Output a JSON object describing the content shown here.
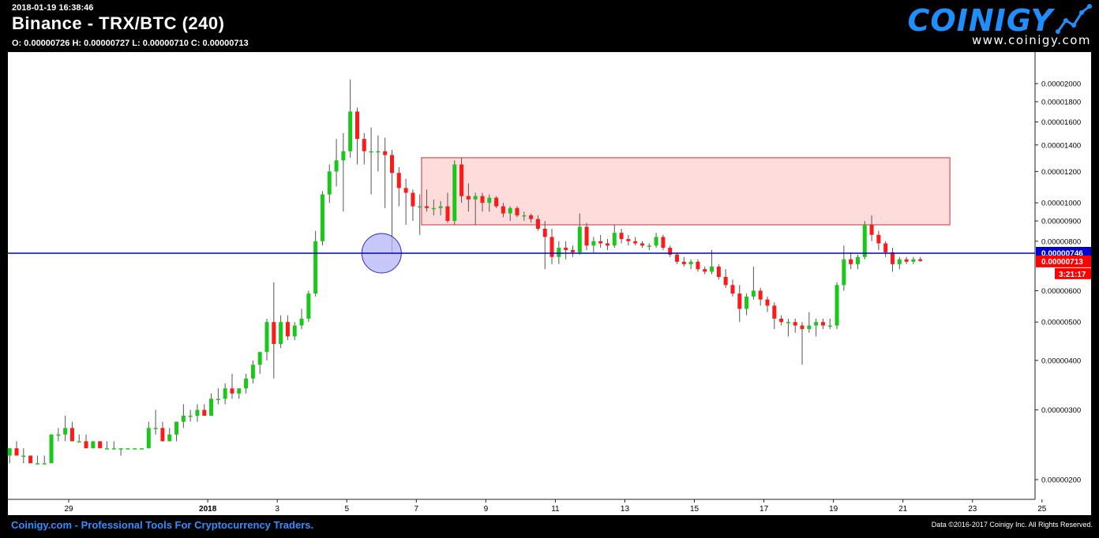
{
  "header": {
    "timestamp": "2018-01-19 16:38:46",
    "title": "Binance - TRX/BTC (240)",
    "ohlc": "O: 0.00000726 H: 0.00000727 L: 0.00000710 C: 0.00000713"
  },
  "logo": {
    "word": "COINIGY",
    "url": "www.coinigy.com"
  },
  "footer": {
    "left": "Coinigy.com - Professional Tools For Cryptocurrency Traders.",
    "right": "Data ©2016-2017 Coinigy Inc. All Rights Reserved."
  },
  "colors": {
    "up": "#19c819",
    "down": "#ff1a1a",
    "background": "#ffffff",
    "hline": "#0000cc",
    "zone_fill": "#ffdcdc",
    "zone_stroke": "#cc3333",
    "circle_fill": "#b4b4f5",
    "current_price_bg": "#ff0000",
    "hline_label_bg": "#0000cc"
  },
  "chart_data": {
    "type": "candlestick",
    "y_scale": "log",
    "y_tick_labels": [
      "0.00000200",
      "0.00000300",
      "0.00000400",
      "0.00000500",
      "0.00000600",
      "0.00000800",
      "0.00000900",
      "0.00001000",
      "0.00001200",
      "0.00001400",
      "0.00001600",
      "0.00001800",
      "0.00002000"
    ],
    "x_tick_labels": [
      "29",
      "2018",
      "3",
      "5",
      "7",
      "9",
      "11",
      "13",
      "15",
      "17",
      "19",
      "21",
      "23",
      "25"
    ],
    "x_tick_days": [
      -3,
      1,
      3,
      5,
      7,
      9,
      11,
      13,
      15,
      17,
      19,
      21,
      23,
      25
    ],
    "x_range_days": [
      -4.75,
      24.8
    ],
    "horizontal_line": {
      "value": 7.46e-06,
      "label": "0.00000746"
    },
    "current_price": {
      "value": 7.13e-06,
      "label": "0.00000713",
      "countdown": "3:21:17"
    },
    "zone": {
      "x_start_day": 7.15,
      "x_end_day": 22.35,
      "top": 1.3e-05,
      "bottom": 8.8e-06
    },
    "circle": {
      "x_day": 6.0,
      "value": 7.46e-06
    },
    "candles": [
      {
        "d": -4.7,
        "o": 2.3e-06,
        "h": 2.4e-06,
        "l": 2.2e-06,
        "c": 2.4e-06
      },
      {
        "d": -4.5,
        "o": 2.4e-06,
        "h": 2.5e-06,
        "l": 2.3e-06,
        "c": 2.3e-06
      },
      {
        "d": -4.3,
        "o": 2.3e-06,
        "h": 2.4e-06,
        "l": 2.2e-06,
        "c": 2.3e-06
      },
      {
        "d": -4.1,
        "o": 2.3e-06,
        "h": 2.3e-06,
        "l": 2.2e-06,
        "c": 2.2e-06
      },
      {
        "d": -3.9,
        "o": 2.2e-06,
        "h": 2.3e-06,
        "l": 2.2e-06,
        "c": 2.2e-06
      },
      {
        "d": -3.7,
        "o": 2.2e-06,
        "h": 2.3e-06,
        "l": 2.2e-06,
        "c": 2.2e-06
      },
      {
        "d": -3.5,
        "o": 2.2e-06,
        "h": 2.6e-06,
        "l": 2.2e-06,
        "c": 2.6e-06
      },
      {
        "d": -3.3,
        "o": 2.6e-06,
        "h": 2.7e-06,
        "l": 2.5e-06,
        "c": 2.6e-06
      },
      {
        "d": -3.1,
        "o": 2.6e-06,
        "h": 2.9e-06,
        "l": 2.5e-06,
        "c": 2.7e-06
      },
      {
        "d": -2.9,
        "o": 2.7e-06,
        "h": 2.8e-06,
        "l": 2.5e-06,
        "c": 2.5e-06
      },
      {
        "d": -2.7,
        "o": 2.5e-06,
        "h": 2.6e-06,
        "l": 2.5e-06,
        "c": 2.5e-06
      },
      {
        "d": -2.5,
        "o": 2.5e-06,
        "h": 2.6e-06,
        "l": 2.4e-06,
        "c": 2.4e-06
      },
      {
        "d": -2.3,
        "o": 2.4e-06,
        "h": 2.5e-06,
        "l": 2.4e-06,
        "c": 2.5e-06
      },
      {
        "d": -2.1,
        "o": 2.5e-06,
        "h": 2.5e-06,
        "l": 2.4e-06,
        "c": 2.4e-06
      },
      {
        "d": -1.9,
        "o": 2.4e-06,
        "h": 2.5e-06,
        "l": 2.4e-06,
        "c": 2.4e-06
      },
      {
        "d": -1.7,
        "o": 2.4e-06,
        "h": 2.5e-06,
        "l": 2.4e-06,
        "c": 2.4e-06
      },
      {
        "d": -1.5,
        "o": 2.4e-06,
        "h": 2.4e-06,
        "l": 2.3e-06,
        "c": 2.4e-06
      },
      {
        "d": -1.3,
        "o": 2.4e-06,
        "h": 2.4e-06,
        "l": 2.4e-06,
        "c": 2.4e-06
      },
      {
        "d": -1.1,
        "o": 2.4e-06,
        "h": 2.4e-06,
        "l": 2.4e-06,
        "c": 2.4e-06
      },
      {
        "d": -0.9,
        "o": 2.4e-06,
        "h": 2.4e-06,
        "l": 2.4e-06,
        "c": 2.4e-06
      },
      {
        "d": -0.7,
        "o": 2.4e-06,
        "h": 2.8e-06,
        "l": 2.4e-06,
        "c": 2.7e-06
      },
      {
        "d": -0.5,
        "o": 2.7e-06,
        "h": 3e-06,
        "l": 2.6e-06,
        "c": 2.7e-06
      },
      {
        "d": -0.3,
        "o": 2.7e-06,
        "h": 2.8e-06,
        "l": 2.5e-06,
        "c": 2.5e-06
      },
      {
        "d": -0.1,
        "o": 2.5e-06,
        "h": 2.7e-06,
        "l": 2.5e-06,
        "c": 2.6e-06
      },
      {
        "d": 0.1,
        "o": 2.6e-06,
        "h": 2.8e-06,
        "l": 2.5e-06,
        "c": 2.8e-06
      },
      {
        "d": 0.3,
        "o": 2.8e-06,
        "h": 3.1e-06,
        "l": 2.7e-06,
        "c": 2.9e-06
      },
      {
        "d": 0.5,
        "o": 2.9e-06,
        "h": 3e-06,
        "l": 2.8e-06,
        "c": 2.9e-06
      },
      {
        "d": 0.7,
        "o": 2.9e-06,
        "h": 3.1e-06,
        "l": 2.8e-06,
        "c": 3e-06
      },
      {
        "d": 0.9,
        "o": 3e-06,
        "h": 3.1e-06,
        "l": 2.9e-06,
        "c": 2.9e-06
      },
      {
        "d": 1.1,
        "o": 2.9e-06,
        "h": 3.3e-06,
        "l": 2.9e-06,
        "c": 3.2e-06
      },
      {
        "d": 1.3,
        "o": 3.2e-06,
        "h": 3.4e-06,
        "l": 3.1e-06,
        "c": 3.2e-06
      },
      {
        "d": 1.5,
        "o": 3.2e-06,
        "h": 3.5e-06,
        "l": 3.1e-06,
        "c": 3.4e-06
      },
      {
        "d": 1.7,
        "o": 3.4e-06,
        "h": 3.7e-06,
        "l": 3.2e-06,
        "c": 3.3e-06
      },
      {
        "d": 1.9,
        "o": 3.3e-06,
        "h": 3.4e-06,
        "l": 3.2e-06,
        "c": 3.4e-06
      },
      {
        "d": 2.1,
        "o": 3.4e-06,
        "h": 3.7e-06,
        "l": 3.3e-06,
        "c": 3.6e-06
      },
      {
        "d": 2.3,
        "o": 3.6e-06,
        "h": 4e-06,
        "l": 3.5e-06,
        "c": 3.9e-06
      },
      {
        "d": 2.5,
        "o": 3.9e-06,
        "h": 4.2e-06,
        "l": 3.7e-06,
        "c": 4.2e-06
      },
      {
        "d": 2.7,
        "o": 4.2e-06,
        "h": 5.1e-06,
        "l": 4e-06,
        "c": 5e-06
      },
      {
        "d": 2.9,
        "o": 5e-06,
        "h": 6.3e-06,
        "l": 3.6e-06,
        "c": 4.4e-06
      },
      {
        "d": 3.1,
        "o": 4.4e-06,
        "h": 5.2e-06,
        "l": 4.3e-06,
        "c": 5e-06
      },
      {
        "d": 3.3,
        "o": 5e-06,
        "h": 5.2e-06,
        "l": 4.5e-06,
        "c": 4.6e-06
      },
      {
        "d": 3.5,
        "o": 4.6e-06,
        "h": 5e-06,
        "l": 4.5e-06,
        "c": 4.9e-06
      },
      {
        "d": 3.7,
        "o": 4.9e-06,
        "h": 5.4e-06,
        "l": 4.8e-06,
        "c": 5.1e-06
      },
      {
        "d": 3.9,
        "o": 5.1e-06,
        "h": 6e-06,
        "l": 5e-06,
        "c": 5.9e-06
      },
      {
        "d": 4.1,
        "o": 5.9e-06,
        "h": 8.5e-06,
        "l": 5.8e-06,
        "c": 8e-06
      },
      {
        "d": 4.3,
        "o": 8e-06,
        "h": 1.07e-05,
        "l": 7.8e-06,
        "c": 1.05e-05
      },
      {
        "d": 4.5,
        "o": 1.05e-05,
        "h": 1.25e-05,
        "l": 1e-05,
        "c": 1.2e-05
      },
      {
        "d": 4.7,
        "o": 1.2e-05,
        "h": 1.45e-05,
        "l": 1.1e-05,
        "c": 1.28e-05
      },
      {
        "d": 4.9,
        "o": 1.28e-05,
        "h": 1.5e-05,
        "l": 9.5e-06,
        "c": 1.35e-05
      },
      {
        "d": 5.1,
        "o": 1.35e-05,
        "h": 2.05e-05,
        "l": 1.3e-05,
        "c": 1.7e-05
      },
      {
        "d": 5.3,
        "o": 1.7e-05,
        "h": 1.74e-05,
        "l": 1.25e-05,
        "c": 1.45e-05
      },
      {
        "d": 5.5,
        "o": 1.45e-05,
        "h": 1.5e-05,
        "l": 1.25e-05,
        "c": 1.35e-05
      },
      {
        "d": 5.7,
        "o": 1.35e-05,
        "h": 1.55e-05,
        "l": 1.05e-05,
        "c": 1.35e-05
      },
      {
        "d": 5.9,
        "o": 1.35e-05,
        "h": 1.48e-05,
        "l": 1.2e-05,
        "c": 1.35e-05
      },
      {
        "d": 6.1,
        "o": 1.35e-05,
        "h": 1.46e-05,
        "l": 9.7e-06,
        "c": 1.32e-05
      },
      {
        "d": 6.3,
        "o": 1.32e-05,
        "h": 1.36e-05,
        "l": 7.5e-06,
        "c": 1.19e-05
      },
      {
        "d": 6.5,
        "o": 1.19e-05,
        "h": 1.23e-05,
        "l": 9.8e-06,
        "c": 1.09e-05
      },
      {
        "d": 6.7,
        "o": 1.09e-05,
        "h": 1.15e-05,
        "l": 8.8e-06,
        "c": 1.06e-05
      },
      {
        "d": 6.9,
        "o": 1.06e-05,
        "h": 1.08e-05,
        "l": 9e-06,
        "c": 9.8e-06
      },
      {
        "d": 7.1,
        "o": 9.8e-06,
        "h": 1.05e-05,
        "l": 8.3e-06,
        "c": 9.8e-06
      },
      {
        "d": 7.3,
        "o": 9.8e-06,
        "h": 1.08e-05,
        "l": 9.5e-06,
        "c": 9.7e-06
      },
      {
        "d": 7.5,
        "o": 9.7e-06,
        "h": 1.02e-05,
        "l": 9.3e-06,
        "c": 9.7e-06
      },
      {
        "d": 7.7,
        "o": 9.7e-06,
        "h": 1.01e-05,
        "l": 9.3e-06,
        "c": 9.8e-06
      },
      {
        "d": 7.9,
        "o": 9.8e-06,
        "h": 1.06e-05,
        "l": 8.9e-06,
        "c": 9e-06
      },
      {
        "d": 8.1,
        "o": 9e-06,
        "h": 1.28e-05,
        "l": 8.8e-06,
        "c": 1.25e-05
      },
      {
        "d": 8.3,
        "o": 1.25e-05,
        "h": 1.3e-05,
        "l": 1e-05,
        "c": 1.04e-05
      },
      {
        "d": 8.5,
        "o": 1.04e-05,
        "h": 1.12e-05,
        "l": 9.5e-06,
        "c": 1.02e-05
      },
      {
        "d": 8.7,
        "o": 1.02e-05,
        "h": 1.06e-05,
        "l": 8.8e-06,
        "c": 1.04e-05
      },
      {
        "d": 8.9,
        "o": 1.04e-05,
        "h": 1.06e-05,
        "l": 9.5e-06,
        "c": 1e-05
      },
      {
        "d": 9.1,
        "o": 1e-05,
        "h": 1.05e-05,
        "l": 9.5e-06,
        "c": 1.03e-05
      },
      {
        "d": 9.3,
        "o": 1.03e-05,
        "h": 1.04e-05,
        "l": 9.7e-06,
        "c": 9.8e-06
      },
      {
        "d": 9.5,
        "o": 9.8e-06,
        "h": 1e-05,
        "l": 9.2e-06,
        "c": 9.4e-06
      },
      {
        "d": 9.7,
        "o": 9.4e-06,
        "h": 9.8e-06,
        "l": 9e-06,
        "c": 9.7e-06
      },
      {
        "d": 9.9,
        "o": 9.7e-06,
        "h": 9.8e-06,
        "l": 9.2e-06,
        "c": 9.3e-06
      },
      {
        "d": 10.1,
        "o": 9.3e-06,
        "h": 9.5e-06,
        "l": 9e-06,
        "c": 9.3e-06
      },
      {
        "d": 10.3,
        "o": 9.3e-06,
        "h": 9.4e-06,
        "l": 8.9e-06,
        "c": 9.1e-06
      },
      {
        "d": 10.5,
        "o": 9.1e-06,
        "h": 9.3e-06,
        "l": 8.5e-06,
        "c": 8.6e-06
      },
      {
        "d": 10.7,
        "o": 8.6e-06,
        "h": 9e-06,
        "l": 6.8e-06,
        "c": 8.2e-06
      },
      {
        "d": 10.9,
        "o": 8.2e-06,
        "h": 8.6e-06,
        "l": 7e-06,
        "c": 7.3e-06
      },
      {
        "d": 11.1,
        "o": 7.3e-06,
        "h": 8e-06,
        "l": 7e-06,
        "c": 7.7e-06
      },
      {
        "d": 11.3,
        "o": 7.7e-06,
        "h": 8e-06,
        "l": 7.2e-06,
        "c": 7.6e-06
      },
      {
        "d": 11.5,
        "o": 7.6e-06,
        "h": 7.8e-06,
        "l": 7.3e-06,
        "c": 7.5e-06
      },
      {
        "d": 11.7,
        "o": 7.5e-06,
        "h": 9.4e-06,
        "l": 7.4e-06,
        "c": 8.7e-06
      },
      {
        "d": 11.9,
        "o": 8.7e-06,
        "h": 8.9e-06,
        "l": 7.6e-06,
        "c": 7.8e-06
      },
      {
        "d": 12.1,
        "o": 7.8e-06,
        "h": 8.2e-06,
        "l": 7.5e-06,
        "c": 8e-06
      },
      {
        "d": 12.3,
        "o": 8e-06,
        "h": 8.3e-06,
        "l": 7.7e-06,
        "c": 7.9e-06
      },
      {
        "d": 12.5,
        "o": 7.9e-06,
        "h": 8.1e-06,
        "l": 7.6e-06,
        "c": 7.8e-06
      },
      {
        "d": 12.7,
        "o": 7.8e-06,
        "h": 8.8e-06,
        "l": 7.7e-06,
        "c": 8.4e-06
      },
      {
        "d": 12.9,
        "o": 8.4e-06,
        "h": 8.6e-06,
        "l": 7.9e-06,
        "c": 8.1e-06
      },
      {
        "d": 13.1,
        "o": 8.1e-06,
        "h": 8.3e-06,
        "l": 7.8e-06,
        "c": 8e-06
      },
      {
        "d": 13.3,
        "o": 8e-06,
        "h": 8.2e-06,
        "l": 7.8e-06,
        "c": 7.9e-06
      },
      {
        "d": 13.5,
        "o": 7.9e-06,
        "h": 8e-06,
        "l": 7.7e-06,
        "c": 7.8e-06
      },
      {
        "d": 13.7,
        "o": 7.8e-06,
        "h": 7.9e-06,
        "l": 7.6e-06,
        "c": 7.8e-06
      },
      {
        "d": 13.9,
        "o": 7.8e-06,
        "h": 8.4e-06,
        "l": 7.7e-06,
        "c": 8.2e-06
      },
      {
        "d": 14.1,
        "o": 8.2e-06,
        "h": 8.3e-06,
        "l": 7.6e-06,
        "c": 7.7e-06
      },
      {
        "d": 14.3,
        "o": 7.7e-06,
        "h": 7.8e-06,
        "l": 7.3e-06,
        "c": 7.4e-06
      },
      {
        "d": 14.5,
        "o": 7.4e-06,
        "h": 7.5e-06,
        "l": 7e-06,
        "c": 7.1e-06
      },
      {
        "d": 14.7,
        "o": 7.1e-06,
        "h": 7.3e-06,
        "l": 6.9e-06,
        "c": 7e-06
      },
      {
        "d": 14.9,
        "o": 7e-06,
        "h": 7.2e-06,
        "l": 6.8e-06,
        "c": 7.1e-06
      },
      {
        "d": 15.1,
        "o": 7.1e-06,
        "h": 7.2e-06,
        "l": 6.7e-06,
        "c": 6.8e-06
      },
      {
        "d": 15.3,
        "o": 6.8e-06,
        "h": 6.9e-06,
        "l": 6.6e-06,
        "c": 6.7e-06
      },
      {
        "d": 15.5,
        "o": 6.7e-06,
        "h": 7.6e-06,
        "l": 6.6e-06,
        "c": 6.9e-06
      },
      {
        "d": 15.7,
        "o": 6.9e-06,
        "h": 7e-06,
        "l": 6.4e-06,
        "c": 6.5e-06
      },
      {
        "d": 15.9,
        "o": 6.5e-06,
        "h": 6.8e-06,
        "l": 6.1e-06,
        "c": 6.2e-06
      },
      {
        "d": 16.1,
        "o": 6.2e-06,
        "h": 6.4e-06,
        "l": 5.8e-06,
        "c": 5.9e-06
      },
      {
        "d": 16.3,
        "o": 5.9e-06,
        "h": 6.2e-06,
        "l": 5e-06,
        "c": 5.4e-06
      },
      {
        "d": 16.5,
        "o": 5.4e-06,
        "h": 5.9e-06,
        "l": 5.2e-06,
        "c": 5.8e-06
      },
      {
        "d": 16.7,
        "o": 5.8e-06,
        "h": 6.9e-06,
        "l": 5.7e-06,
        "c": 6e-06
      },
      {
        "d": 16.9,
        "o": 6e-06,
        "h": 6.1e-06,
        "l": 5.5e-06,
        "c": 5.7e-06
      },
      {
        "d": 17.1,
        "o": 5.7e-06,
        "h": 5.8e-06,
        "l": 5.3e-06,
        "c": 5.5e-06
      },
      {
        "d": 17.3,
        "o": 5.5e-06,
        "h": 5.6e-06,
        "l": 4.8e-06,
        "c": 5.1e-06
      },
      {
        "d": 17.5,
        "o": 5.1e-06,
        "h": 5.2e-06,
        "l": 4.9e-06,
        "c": 5e-06
      },
      {
        "d": 17.7,
        "o": 5e-06,
        "h": 5.1e-06,
        "l": 4.6e-06,
        "c": 5e-06
      },
      {
        "d": 17.9,
        "o": 5e-06,
        "h": 5.1e-06,
        "l": 4.7e-06,
        "c": 4.9e-06
      },
      {
        "d": 18.1,
        "o": 4.9e-06,
        "h": 5e-06,
        "l": 3.9e-06,
        "c": 4.8e-06
      },
      {
        "d": 18.3,
        "o": 4.8e-06,
        "h": 5.3e-06,
        "l": 4.7e-06,
        "c": 4.9e-06
      },
      {
        "d": 18.5,
        "o": 4.9e-06,
        "h": 5.1e-06,
        "l": 4.6e-06,
        "c": 5e-06
      },
      {
        "d": 18.7,
        "o": 5e-06,
        "h": 5.1e-06,
        "l": 4.8e-06,
        "c": 4.9e-06
      },
      {
        "d": 18.9,
        "o": 4.9e-06,
        "h": 5.1e-06,
        "l": 4.8e-06,
        "c": 4.9e-06
      },
      {
        "d": 19.1,
        "o": 4.9e-06,
        "h": 6.3e-06,
        "l": 4.8e-06,
        "c": 6.2e-06
      },
      {
        "d": 19.3,
        "o": 6.2e-06,
        "h": 7.8e-06,
        "l": 6e-06,
        "c": 7.2e-06
      },
      {
        "d": 19.5,
        "o": 7.2e-06,
        "h": 7.5e-06,
        "l": 6.8e-06,
        "c": 7e-06
      },
      {
        "d": 19.7,
        "o": 7e-06,
        "h": 7.4e-06,
        "l": 6.8e-06,
        "c": 7.3e-06
      },
      {
        "d": 19.9,
        "o": 7.3e-06,
        "h": 9e-06,
        "l": 7.2e-06,
        "c": 8.8e-06
      },
      {
        "d": 20.1,
        "o": 8.8e-06,
        "h": 9.3e-06,
        "l": 8e-06,
        "c": 8.3e-06
      },
      {
        "d": 20.3,
        "o": 8.3e-06,
        "h": 8.5e-06,
        "l": 7.6e-06,
        "c": 7.9e-06
      },
      {
        "d": 20.5,
        "o": 7.9e-06,
        "h": 8e-06,
        "l": 7.3e-06,
        "c": 7.5e-06
      },
      {
        "d": 20.7,
        "o": 7.5e-06,
        "h": 7.7e-06,
        "l": 6.7e-06,
        "c": 7e-06
      },
      {
        "d": 20.9,
        "o": 7e-06,
        "h": 7.3e-06,
        "l": 6.8e-06,
        "c": 7.2e-06
      },
      {
        "d": 21.1,
        "o": 7.2e-06,
        "h": 7.3e-06,
        "l": 7e-06,
        "c": 7.1e-06
      },
      {
        "d": 21.3,
        "o": 7.1e-06,
        "h": 7.3e-06,
        "l": 7e-06,
        "c": 7.2e-06
      },
      {
        "d": 21.5,
        "o": 7.2e-06,
        "h": 7.3e-06,
        "l": 7.1e-06,
        "c": 7.13e-06
      }
    ]
  }
}
